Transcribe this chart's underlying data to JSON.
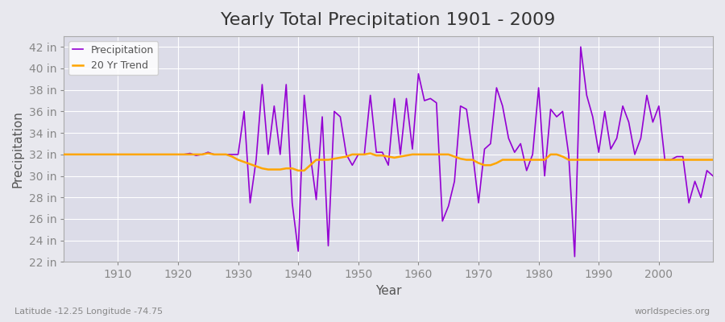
{
  "title": "Yearly Total Precipitation 1901 - 2009",
  "xlabel": "Year",
  "ylabel": "Precipitation",
  "subtitle": "Latitude -12.25 Longitude -74.75",
  "watermark": "worldspecies.org",
  "years": [
    1901,
    1902,
    1903,
    1904,
    1905,
    1906,
    1907,
    1908,
    1909,
    1910,
    1911,
    1912,
    1913,
    1914,
    1915,
    1916,
    1917,
    1918,
    1919,
    1920,
    1921,
    1922,
    1923,
    1924,
    1925,
    1926,
    1927,
    1928,
    1929,
    1930,
    1931,
    1932,
    1933,
    1934,
    1935,
    1936,
    1937,
    1938,
    1939,
    1940,
    1941,
    1942,
    1943,
    1944,
    1945,
    1946,
    1947,
    1948,
    1949,
    1950,
    1951,
    1952,
    1953,
    1954,
    1955,
    1956,
    1957,
    1958,
    1959,
    1960,
    1961,
    1962,
    1963,
    1964,
    1965,
    1966,
    1967,
    1968,
    1969,
    1970,
    1971,
    1972,
    1973,
    1974,
    1975,
    1976,
    1977,
    1978,
    1979,
    1980,
    1981,
    1982,
    1983,
    1984,
    1985,
    1986,
    1987,
    1988,
    1989,
    1990,
    1991,
    1992,
    1993,
    1994,
    1995,
    1996,
    1997,
    1998,
    1999,
    2000,
    2001,
    2002,
    2003,
    2004,
    2005,
    2006,
    2007,
    2008,
    2009
  ],
  "precipitation": [
    32.0,
    32.0,
    32.0,
    32.0,
    32.0,
    32.0,
    32.0,
    32.0,
    32.0,
    32.0,
    32.0,
    32.0,
    32.0,
    32.0,
    32.0,
    32.0,
    32.0,
    32.0,
    32.0,
    32.0,
    32.0,
    32.1,
    31.9,
    32.0,
    32.2,
    32.0,
    32.0,
    32.0,
    32.0,
    32.0,
    36.0,
    27.5,
    31.5,
    38.5,
    32.0,
    36.5,
    32.0,
    38.5,
    27.5,
    23.0,
    37.5,
    32.0,
    27.8,
    35.5,
    23.5,
    36.0,
    35.5,
    32.0,
    31.0,
    32.0,
    32.0,
    37.5,
    32.2,
    32.2,
    31.0,
    37.2,
    32.0,
    37.2,
    32.5,
    39.5,
    37.0,
    37.2,
    36.8,
    25.8,
    27.2,
    29.5,
    36.5,
    36.2,
    32.2,
    27.5,
    32.5,
    33.0,
    38.2,
    36.5,
    33.5,
    32.2,
    33.0,
    30.5,
    32.0,
    38.2,
    30.0,
    36.2,
    35.5,
    36.0,
    32.0,
    22.5,
    42.0,
    37.5,
    35.5,
    32.2,
    36.0,
    32.5,
    33.5,
    36.5,
    35.0,
    32.0,
    33.5,
    37.5,
    35.0,
    36.5,
    31.5,
    31.5,
    31.8,
    31.8,
    27.5,
    29.5,
    28.0,
    30.5,
    30.0
  ],
  "trend": [
    32.0,
    32.0,
    32.0,
    32.0,
    32.0,
    32.0,
    32.0,
    32.0,
    32.0,
    32.0,
    32.0,
    32.0,
    32.0,
    32.0,
    32.0,
    32.0,
    32.0,
    32.0,
    32.0,
    32.0,
    32.0,
    32.0,
    32.0,
    32.0,
    32.1,
    32.0,
    32.0,
    32.0,
    31.8,
    31.5,
    31.3,
    31.1,
    30.9,
    30.7,
    30.6,
    30.6,
    30.6,
    30.7,
    30.7,
    30.5,
    30.5,
    31.0,
    31.5,
    31.5,
    31.5,
    31.6,
    31.7,
    31.8,
    32.0,
    32.0,
    32.0,
    32.1,
    31.9,
    31.9,
    31.8,
    31.7,
    31.8,
    31.9,
    32.0,
    32.0,
    32.0,
    32.0,
    32.0,
    32.0,
    32.0,
    31.8,
    31.6,
    31.5,
    31.5,
    31.2,
    31.0,
    31.0,
    31.2,
    31.5,
    31.5,
    31.5,
    31.5,
    31.5,
    31.5,
    31.5,
    31.5,
    32.0,
    32.0,
    31.8,
    31.5,
    31.5,
    31.5,
    31.5,
    31.5,
    31.5,
    31.5,
    31.5,
    31.5,
    31.5,
    31.5,
    31.5,
    31.5,
    31.5,
    31.5,
    31.5,
    31.5,
    31.5,
    31.5,
    31.5,
    31.5,
    31.5,
    31.5,
    31.5,
    31.5
  ],
  "ylim": [
    22,
    43
  ],
  "yticks": [
    22,
    24,
    26,
    28,
    30,
    32,
    34,
    36,
    38,
    40,
    42
  ],
  "ytick_labels": [
    "22 in",
    "24 in",
    "26 in",
    "28 in",
    "30 in",
    "32 in",
    "34 in",
    "36 in",
    "38 in",
    "40 in",
    "42 in"
  ],
  "xticks": [
    1910,
    1920,
    1930,
    1940,
    1950,
    1960,
    1970,
    1980,
    1990,
    2000
  ],
  "precip_color": "#9400D3",
  "trend_color": "#FFA500",
  "bg_color": "#E8E8EE",
  "plot_bg_color": "#DCDCE8",
  "grid_color": "#FFFFFF",
  "title_fontsize": 16,
  "label_fontsize": 11,
  "tick_fontsize": 10
}
